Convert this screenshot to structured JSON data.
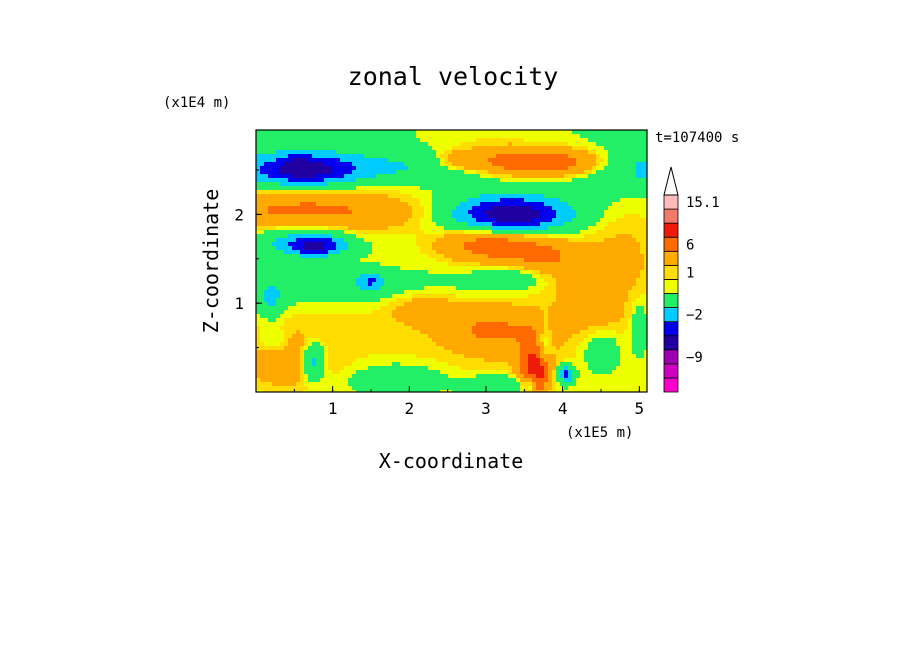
{
  "chart_data": {
    "type": "heatmap",
    "title": "zonal velocity",
    "xlabel": "X-coordinate",
    "ylabel": "Z-coordinate",
    "x_unit": "(x1E5 m)",
    "y_unit": "(x1E4 m)",
    "time_label": "t=107400 s",
    "xlim": [
      0,
      5.1
    ],
    "ylim": [
      0,
      2.95
    ],
    "x_ticks": [
      {
        "v": 1,
        "label": "1"
      },
      {
        "v": 2,
        "label": "2"
      },
      {
        "v": 3,
        "label": "3"
      },
      {
        "v": 4,
        "label": "4"
      },
      {
        "v": 5,
        "label": "5"
      }
    ],
    "y_ticks": [
      {
        "v": 1,
        "label": "1"
      },
      {
        "v": 2,
        "label": "2"
      }
    ],
    "colorbar": {
      "levels": [
        {
          "color": "#ff00cc",
          "value": -15
        },
        {
          "color": "#d000c0",
          "value": -12
        },
        {
          "color": "#9c00b0",
          "value": -9
        },
        {
          "color": "#2000a0",
          "value": -6
        },
        {
          "color": "#0000ee",
          "value": -4
        },
        {
          "color": "#00ccff",
          "value": -2
        },
        {
          "color": "#22ee66",
          "value": 0
        },
        {
          "color": "#eeff00",
          "value": 0.5
        },
        {
          "color": "#ffdd00",
          "value": 1
        },
        {
          "color": "#ffaa00",
          "value": 3
        },
        {
          "color": "#ff6a00",
          "value": 6
        },
        {
          "color": "#ee1a0a",
          "value": 9
        },
        {
          "color": "#f27a6a",
          "value": 12
        },
        {
          "color": "#ffbbbb",
          "value": 15.1
        }
      ],
      "labels": [
        {
          "v": 15.1,
          "label": "15.1"
        },
        {
          "v": 6,
          "label": "6"
        },
        {
          "v": 1,
          "label": "1"
        },
        {
          "v": -2,
          "label": "−2"
        },
        {
          "v": -9,
          "label": "−9"
        }
      ]
    },
    "features": [
      {
        "x": 1.35,
        "z": 1.35,
        "rx": 3.2,
        "rz": 0.55,
        "u": 0
      },
      {
        "x": 4.0,
        "z": 0.35,
        "rx": 1.8,
        "rz": 0.55,
        "u": 0.55
      },
      {
        "x": 0.95,
        "z": 0.75,
        "rx": 1.5,
        "rz": 0.65,
        "u": 0.6
      },
      {
        "x": 3.25,
        "z": 0.75,
        "rx": 1.0,
        "rz": 0.42,
        "u": 0.85
      },
      {
        "x": 3.05,
        "z": 0.7,
        "rx": 0.55,
        "rz": 0.22,
        "u": 2.3
      },
      {
        "x": 2.2,
        "z": 0.95,
        "rx": 0.45,
        "rz": 0.18,
        "u": 1.5
      },
      {
        "x": 0.4,
        "z": 0.35,
        "rx": 0.55,
        "rz": 0.3,
        "u": 2.0
      },
      {
        "x": 1.85,
        "z": 0.15,
        "rx": 0.55,
        "rz": 0.15,
        "u": -1.5
      },
      {
        "x": 3.2,
        "z": 0.08,
        "rx": 0.45,
        "rz": 0.1,
        "u": -2.2
      },
      {
        "x": 3.75,
        "z": 0.5,
        "rx": 0.1,
        "rz": 0.3,
        "u": -2.2
      },
      {
        "x": 1.05,
        "z": 1.15,
        "rx": 1.8,
        "rz": 0.2,
        "u": -1.0
      },
      {
        "x": 3.4,
        "z": 1.3,
        "rx": 0.5,
        "rz": 0.15,
        "u": -1.3
      },
      {
        "x": 0.55,
        "z": 1.65,
        "rx": 0.55,
        "rz": 0.12,
        "u": -1.8
      },
      {
        "x": 4.9,
        "z": 1.4,
        "rx": 0.45,
        "rz": 0.45,
        "u": 0.6
      },
      {
        "x": 4.75,
        "z": 1.8,
        "rx": 0.55,
        "rz": 0.35,
        "u": 0.7
      },
      {
        "x": 2.6,
        "z": 2.1,
        "rx": 1.4,
        "rz": 0.4,
        "u": 0.5
      },
      {
        "x": 2.9,
        "z": 2.7,
        "rx": 0.8,
        "rz": 0.22,
        "u": 0.7
      },
      {
        "x": 2.5,
        "z": 2.55,
        "rx": 1.6,
        "rz": 0.15,
        "u": -1.5
      },
      {
        "x": 4.6,
        "z": 2.5,
        "rx": 0.7,
        "rz": 0.25,
        "u": -1.2
      },
      {
        "x": 0.45,
        "z": 2.45,
        "rx": 1.6,
        "rz": 0.32,
        "u": -2.4
      },
      {
        "x": 0.45,
        "z": 2.3,
        "rx": 1.6,
        "rz": 0.12,
        "u": 1.0
      },
      {
        "x": 0.65,
        "z": 2.5,
        "rx": 0.6,
        "rz": 0.16,
        "u": -5.0
      },
      {
        "x": 0.55,
        "z": 2.6,
        "rx": 0.18,
        "rz": 0.1,
        "u": -1.5
      },
      {
        "x": 0.6,
        "z": 2.05,
        "rx": 1.3,
        "rz": 0.22,
        "u": 4.2
      },
      {
        "x": 0.8,
        "z": 1.65,
        "rx": 0.35,
        "rz": 0.12,
        "u": -5.0
      },
      {
        "x": 0.55,
        "z": 1.8,
        "rx": 0.6,
        "rz": 0.22,
        "u": -1.4
      },
      {
        "x": 1.5,
        "z": 1.25,
        "rx": 0.2,
        "rz": 0.1,
        "u": -4.0
      },
      {
        "x": 3.35,
        "z": 2.58,
        "rx": 0.55,
        "rz": 0.15,
        "u": 4.5
      },
      {
        "x": 4.05,
        "z": 2.58,
        "rx": 0.5,
        "rz": 0.15,
        "u": 4.2
      },
      {
        "x": 2.65,
        "z": 2.6,
        "rx": 0.3,
        "rz": 0.1,
        "u": 2.5
      },
      {
        "x": 3.35,
        "z": 2.0,
        "rx": 0.7,
        "rz": 0.18,
        "u": -7.0
      },
      {
        "x": 3.2,
        "z": 2.1,
        "rx": 0.9,
        "rz": 0.3,
        "u": -1.5
      },
      {
        "x": 3.05,
        "z": 1.65,
        "rx": 0.6,
        "rz": 0.18,
        "u": 4.0
      },
      {
        "x": 3.7,
        "z": 1.55,
        "rx": 0.5,
        "rz": 0.18,
        "u": 2.6
      },
      {
        "x": 4.25,
        "z": 1.35,
        "rx": 0.6,
        "rz": 0.25,
        "u": 1.8
      },
      {
        "x": 4.4,
        "z": 0.9,
        "rx": 0.5,
        "rz": 0.25,
        "u": 1.2
      },
      {
        "x": 3.6,
        "z": 0.42,
        "rx": 0.18,
        "rz": 0.3,
        "u": 3.0
      },
      {
        "x": 3.6,
        "z": 0.12,
        "rx": 0.08,
        "rz": 0.12,
        "u": -5.0
      },
      {
        "x": 4.05,
        "z": 0.2,
        "rx": 0.1,
        "rz": 0.1,
        "u": -5.0
      },
      {
        "x": 0.75,
        "z": 0.35,
        "rx": 0.15,
        "rz": 0.2,
        "u": -4.0
      },
      {
        "x": 0.25,
        "z": 0.55,
        "rx": 0.2,
        "rz": 0.15,
        "u": -1.5
      },
      {
        "x": 5.05,
        "z": 2.5,
        "rx": 0.1,
        "rz": 0.1,
        "u": -3.0
      },
      {
        "x": 0.2,
        "z": 1.05,
        "rx": 0.15,
        "rz": 0.2,
        "u": -2.5
      },
      {
        "x": 4.5,
        "z": 0.45,
        "rx": 0.25,
        "rz": 0.25,
        "u": -1.5
      },
      {
        "x": 5.0,
        "z": 0.7,
        "rx": 0.1,
        "rz": 0.25,
        "u": -2.0
      },
      {
        "x": 3.65,
        "z": 0.2,
        "rx": 0.15,
        "rz": 0.2,
        "u": 8.0
      }
    ]
  }
}
